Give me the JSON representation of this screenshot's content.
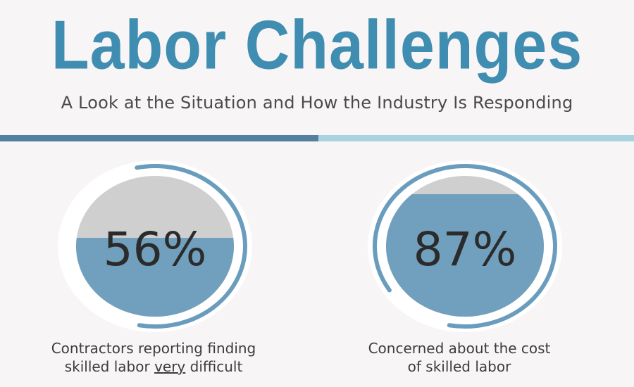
{
  "title": "Labor Challenges",
  "subtitle": "A Look at the Situation and How the Industry Is Responding",
  "colors": {
    "title": "#3f8db0",
    "divider_left": "#52809e",
    "divider_right": "#a9d4df",
    "fill": "#70a0bd",
    "empty": "#cfcfcf",
    "ring": "#6a9dbd"
  },
  "stats": [
    {
      "value": 56,
      "label": "56%",
      "caption_line1": "Contractors reporting finding",
      "caption_line2_before": "skilled labor ",
      "caption_line2_emphasis": "very",
      "caption_line2_after": " difficult"
    },
    {
      "value": 87,
      "label": "87%",
      "caption_line1": "Concerned about the cost",
      "caption_line2": "of skilled labor"
    }
  ]
}
